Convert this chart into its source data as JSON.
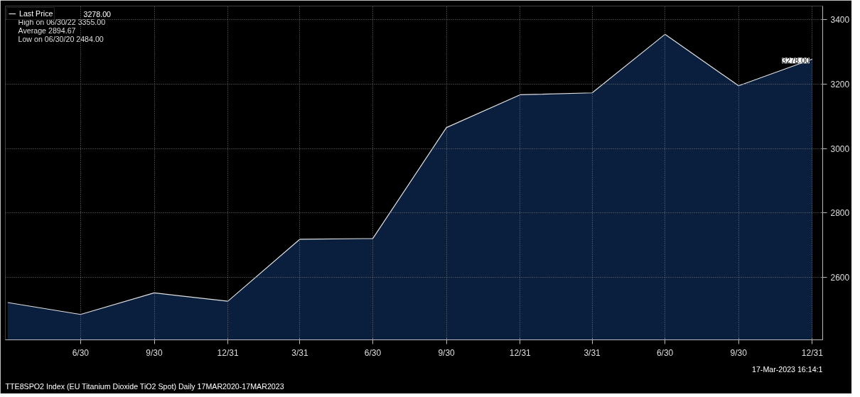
{
  "chart_data": {
    "type": "area",
    "title": "TTE8SPO2 Index (EU Titanium Dioxide TiO2 Spot)  Daily 17MAR2020-17MAR2023",
    "x": [
      "2020-03-31",
      "2020-06-30",
      "2020-09-30",
      "2020-12-31",
      "2021-03-31",
      "2021-06-30",
      "2021-09-30",
      "2021-12-31",
      "2022-03-31",
      "2022-06-30",
      "2022-09-30",
      "2022-12-31"
    ],
    "series": [
      {
        "name": "Last Price",
        "color": "#0a1f3d",
        "values": [
          2521,
          2484,
          2551,
          2525,
          2718,
          2720,
          3065,
          3167,
          3173,
          3355,
          3195,
          3278
        ]
      }
    ],
    "xlim": [
      "2020-03-28",
      "2023-01-13"
    ],
    "xticks": [
      {
        "value": "2020-06-30",
        "label": "6/30"
      },
      {
        "value": "2020-09-30",
        "label": "9/30"
      },
      {
        "value": "2020-12-31",
        "label": "12/31"
      },
      {
        "value": "2021-03-31",
        "label": "3/31"
      },
      {
        "value": "2021-06-30",
        "label": "6/30"
      },
      {
        "value": "2021-09-30",
        "label": "9/30"
      },
      {
        "value": "2021-12-31",
        "label": "12/31"
      },
      {
        "value": "2022-03-31",
        "label": "3/31"
      },
      {
        "value": "2022-06-30",
        "label": "6/30"
      },
      {
        "value": "2022-09-30",
        "label": "9/30"
      },
      {
        "value": "2022-12-31",
        "label": "12/31"
      }
    ],
    "ylim": [
      2405,
      3443
    ],
    "yticks": [
      2600,
      2800,
      3000,
      3200,
      3400
    ],
    "grid": true,
    "legend": "top left",
    "annotations": [
      "3278.00",
      "High on 06/30/22  3355.00",
      "Average  2894.67",
      "Low on 06/30/20  2484.00",
      {
        "text": "3278.00",
        "x": "2022-12-31",
        "y": 3278
      },
      "17-Mar-2023 16:14:1"
    ]
  }
}
